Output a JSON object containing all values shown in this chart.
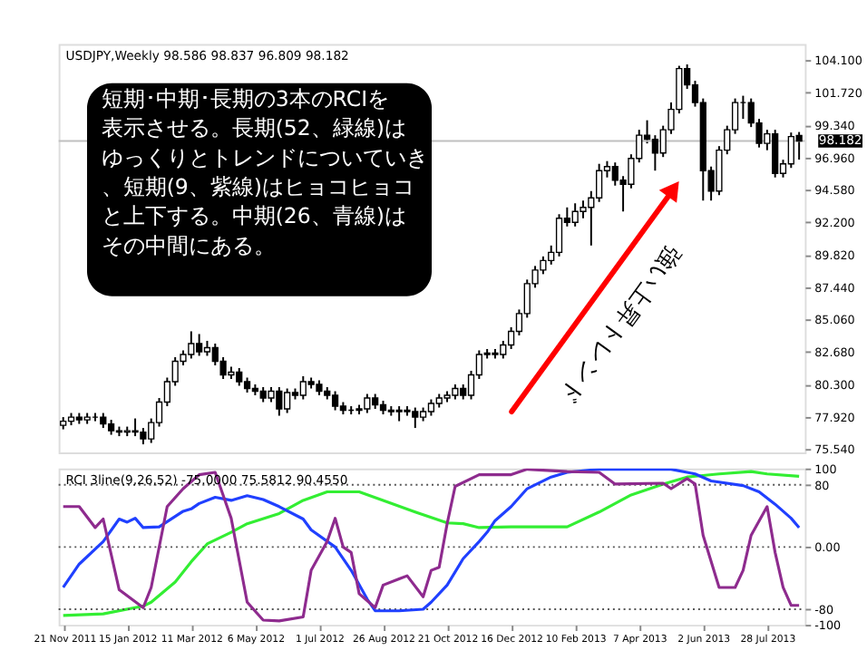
{
  "chart_data": [
    {
      "type": "candlestick",
      "x": [
        "2011-11-20",
        "2011-11-27",
        "2011-12-04",
        "2011-12-11",
        "2011-12-18",
        "2011-12-25",
        "2012-01-01",
        "2012-01-08",
        "2012-01-15",
        "2012-01-22",
        "2012-01-29",
        "2012-02-05",
        "2012-02-12",
        "2012-02-19",
        "2012-02-26",
        "2012-03-04",
        "2012-03-11",
        "2012-03-18",
        "2012-03-25",
        "2012-04-01",
        "2012-04-08",
        "2012-04-15",
        "2012-04-22",
        "2012-04-29",
        "2012-05-06",
        "2012-05-13",
        "2012-05-20",
        "2012-05-27",
        "2012-06-03",
        "2012-06-10",
        "2012-06-17",
        "2012-06-24",
        "2012-07-01",
        "2012-07-08",
        "2012-07-15",
        "2012-07-22",
        "2012-07-29",
        "2012-08-05",
        "2012-08-12",
        "2012-08-19",
        "2012-08-26",
        "2012-09-02",
        "2012-09-09",
        "2012-09-16",
        "2012-09-23",
        "2012-09-30",
        "2012-10-07",
        "2012-10-14",
        "2012-10-21",
        "2012-10-28",
        "2012-11-04",
        "2012-11-11",
        "2012-11-18",
        "2012-11-25",
        "2012-12-02",
        "2012-12-09",
        "2012-12-16",
        "2012-12-23",
        "2012-12-30",
        "2013-01-06",
        "2013-01-13",
        "2013-01-20",
        "2013-01-27",
        "2013-02-03",
        "2013-02-10",
        "2013-02-17",
        "2013-02-24",
        "2013-03-03",
        "2013-03-10",
        "2013-03-17",
        "2013-03-24",
        "2013-03-31",
        "2013-04-07",
        "2013-04-14",
        "2013-04-21",
        "2013-04-28",
        "2013-05-05",
        "2013-05-12",
        "2013-05-19",
        "2013-05-26",
        "2013-06-02",
        "2013-06-09",
        "2013-06-16",
        "2013-06-23",
        "2013-06-30",
        "2013-07-07",
        "2013-07-14",
        "2013-07-21",
        "2013-07-28",
        "2013-08-04",
        "2013-08-11",
        "2013-08-18",
        "2013-08-25"
      ],
      "ohlc": [
        [
          77.3,
          77.9,
          77.0,
          77.6
        ],
        [
          77.6,
          78.2,
          77.3,
          77.9
        ],
        [
          77.9,
          78.2,
          77.4,
          77.7
        ],
        [
          77.7,
          78.2,
          77.4,
          77.9
        ],
        [
          77.9,
          78.2,
          77.6,
          77.9
        ],
        [
          77.9,
          78.2,
          77.1,
          77.4
        ],
        [
          77.4,
          77.7,
          76.6,
          76.9
        ],
        [
          76.9,
          77.2,
          76.5,
          76.8
        ],
        [
          76.8,
          77.2,
          76.5,
          76.9
        ],
        [
          76.9,
          77.8,
          76.5,
          76.8
        ],
        [
          76.8,
          77.1,
          75.9,
          76.3
        ],
        [
          76.3,
          77.8,
          76.0,
          77.5
        ],
        [
          77.5,
          79.3,
          77.2,
          79.0
        ],
        [
          79.0,
          80.8,
          78.7,
          80.5
        ],
        [
          80.5,
          82.3,
          80.2,
          82.0
        ],
        [
          82.0,
          82.8,
          81.7,
          82.5
        ],
        [
          82.5,
          84.2,
          82.2,
          83.3
        ],
        [
          83.3,
          84.0,
          82.4,
          82.7
        ],
        [
          82.7,
          83.5,
          82.4,
          83.0
        ],
        [
          83.0,
          83.3,
          81.7,
          82.0
        ],
        [
          82.0,
          82.3,
          80.7,
          81.0
        ],
        [
          81.0,
          81.6,
          80.7,
          81.2
        ],
        [
          81.2,
          81.5,
          80.2,
          80.5
        ],
        [
          80.5,
          80.8,
          79.7,
          80.0
        ],
        [
          80.0,
          80.3,
          79.5,
          79.8
        ],
        [
          79.8,
          80.1,
          79.0,
          79.3
        ],
        [
          79.3,
          80.1,
          79.0,
          79.8
        ],
        [
          79.8,
          80.1,
          78.0,
          78.5
        ],
        [
          78.5,
          80.0,
          78.2,
          79.7
        ],
        [
          79.7,
          80.0,
          79.2,
          79.5
        ],
        [
          79.5,
          80.9,
          79.2,
          80.5
        ],
        [
          80.5,
          80.8,
          80.0,
          80.3
        ],
        [
          80.3,
          80.6,
          79.5,
          79.8
        ],
        [
          79.8,
          80.1,
          79.2,
          79.5
        ],
        [
          79.5,
          79.8,
          78.4,
          78.7
        ],
        [
          78.7,
          79.0,
          78.1,
          78.4
        ],
        [
          78.4,
          78.7,
          78.1,
          78.4
        ],
        [
          78.4,
          78.8,
          78.1,
          78.5
        ],
        [
          78.5,
          79.6,
          78.2,
          79.3
        ],
        [
          79.3,
          79.6,
          78.5,
          78.8
        ],
        [
          78.8,
          79.1,
          78.1,
          78.4
        ],
        [
          78.4,
          78.7,
          78.0,
          78.3
        ],
        [
          78.3,
          78.7,
          77.6,
          78.4
        ],
        [
          78.4,
          78.7,
          78.0,
          78.3
        ],
        [
          78.3,
          78.6,
          77.1,
          77.9
        ],
        [
          77.9,
          78.6,
          77.6,
          78.3
        ],
        [
          78.3,
          79.2,
          78.0,
          78.9
        ],
        [
          78.9,
          79.6,
          78.6,
          79.3
        ],
        [
          79.3,
          79.8,
          79.0,
          79.5
        ],
        [
          79.5,
          80.3,
          79.2,
          80.0
        ],
        [
          80.0,
          80.3,
          79.2,
          79.5
        ],
        [
          79.5,
          81.3,
          79.2,
          81.0
        ],
        [
          81.0,
          82.8,
          80.7,
          82.5
        ],
        [
          82.5,
          82.9,
          82.2,
          82.6
        ],
        [
          82.6,
          82.9,
          82.2,
          82.5
        ],
        [
          82.5,
          83.5,
          82.2,
          83.2
        ],
        [
          83.2,
          84.5,
          82.9,
          84.2
        ],
        [
          84.2,
          85.8,
          83.9,
          85.5
        ],
        [
          85.5,
          88.0,
          85.2,
          87.7
        ],
        [
          87.7,
          89.0,
          87.4,
          88.7
        ],
        [
          88.7,
          89.7,
          88.4,
          89.4
        ],
        [
          89.4,
          90.5,
          89.1,
          90.0
        ],
        [
          90.0,
          92.8,
          89.7,
          92.5
        ],
        [
          92.5,
          93.3,
          91.9,
          92.2
        ],
        [
          92.2,
          93.6,
          91.9,
          93.0
        ],
        [
          93.0,
          93.8,
          92.5,
          93.3
        ],
        [
          93.3,
          94.5,
          90.5,
          94.0
        ],
        [
          94.0,
          96.5,
          93.7,
          96.0
        ],
        [
          96.0,
          96.7,
          95.5,
          96.3
        ],
        [
          96.3,
          96.6,
          94.9,
          95.3
        ],
        [
          95.3,
          95.6,
          93.0,
          95.0
        ],
        [
          95.0,
          97.2,
          94.7,
          96.9
        ],
        [
          96.9,
          99.0,
          96.6,
          98.6
        ],
        [
          98.6,
          99.7,
          98.0,
          98.3
        ],
        [
          98.3,
          98.6,
          96.0,
          97.3
        ],
        [
          97.3,
          99.3,
          97.0,
          99.0
        ],
        [
          99.0,
          101.0,
          98.7,
          100.5
        ],
        [
          100.5,
          103.7,
          100.2,
          103.5
        ],
        [
          103.5,
          103.8,
          102.0,
          102.3
        ],
        [
          102.3,
          102.6,
          100.7,
          101.0
        ],
        [
          101.0,
          101.3,
          93.8,
          96.0
        ],
        [
          96.0,
          96.3,
          93.8,
          94.5
        ],
        [
          94.5,
          97.8,
          94.2,
          97.5
        ],
        [
          97.5,
          99.3,
          97.2,
          99.0
        ],
        [
          99.0,
          101.3,
          98.7,
          101.0
        ],
        [
          101.0,
          101.5,
          99.8,
          101.0
        ],
        [
          101.0,
          101.3,
          99.2,
          99.5
        ],
        [
          99.5,
          99.8,
          97.7,
          98.0
        ],
        [
          98.0,
          99.0,
          97.5,
          98.7
        ],
        [
          98.7,
          99.0,
          95.5,
          95.8
        ],
        [
          95.8,
          96.8,
          95.5,
          96.5
        ],
        [
          96.5,
          98.8,
          96.2,
          98.5
        ],
        [
          98.586,
          98.837,
          96.809,
          98.182
        ]
      ],
      "xlim": [
        "2011-11-16",
        "2013-08-30"
      ],
      "ylim": [
        75.3,
        105.3
      ],
      "yticks": [
        {
          "value": 75.54,
          "label": "75.540"
        },
        {
          "value": 77.92,
          "label": "77.920"
        },
        {
          "value": 80.3,
          "label": "80.300"
        },
        {
          "value": 82.68,
          "label": "82.680"
        },
        {
          "value": 85.06,
          "label": "85.060"
        },
        {
          "value": 87.44,
          "label": "87.440"
        },
        {
          "value": 89.82,
          "label": "89.820"
        },
        {
          "value": 92.2,
          "label": "92.200"
        },
        {
          "value": 94.58,
          "label": "94.580"
        },
        {
          "value": 96.96,
          "label": "96.960"
        },
        {
          "value": 99.34,
          "label": "99.340"
        },
        {
          "value": 101.72,
          "label": "101.720"
        },
        {
          "value": 104.1,
          "label": "104.100"
        }
      ],
      "tick_labels": "y",
      "ref_lines": [
        {
          "axis": "y",
          "value": 98.182,
          "label": "98.182",
          "color": "#c0c0c0",
          "line_style": "solid"
        }
      ],
      "annotations": [
        "USDJPY,Weekly  98.586 98.837 96.809 98.182",
        "短期･中期･長期の3本のRCIを表示させる。長期(52、緑線)はゆっくりとトレンドについていき、短期(9、紫線)はヒョコヒョコと上下する。中期(26、青線)はその中間にある。",
        "強い上昇トレンド"
      ]
    },
    {
      "type": "line",
      "xlim": [
        "2011-11-16",
        "2013-08-30"
      ],
      "xticks": [
        {
          "value": "2011-11-21",
          "label": "21 Nov 2011"
        },
        {
          "value": "2012-01-15",
          "label": "15 Jan 2012"
        },
        {
          "value": "2012-03-11",
          "label": "11 Mar 2012"
        },
        {
          "value": "2012-05-06",
          "label": "6 May 2012"
        },
        {
          "value": "2012-07-01",
          "label": "1 Jul 2012"
        },
        {
          "value": "2012-08-26",
          "label": "26 Aug 2012"
        },
        {
          "value": "2012-10-21",
          "label": "21 Oct 2012"
        },
        {
          "value": "2012-12-16",
          "label": "16 Dec 2012"
        },
        {
          "value": "2013-02-10",
          "label": "10 Feb 2013"
        },
        {
          "value": "2013-04-07",
          "label": "7 Apr 2013"
        },
        {
          "value": "2013-06-02",
          "label": "2 Jun 2013"
        },
        {
          "value": "2013-07-28",
          "label": "28 Jul 2013"
        }
      ],
      "ylim": [
        -100,
        101
      ],
      "yticks": [
        100,
        80,
        {
          "value": 0,
          "label": "0.00"
        },
        -80,
        -100
      ],
      "ref_lines": [
        {
          "axis": "y",
          "value": 80,
          "color": "#555555",
          "line_style": "dotted"
        },
        {
          "axis": "y",
          "value": 0,
          "color": "#555555",
          "line_style": "dotted"
        },
        {
          "axis": "y",
          "value": -80,
          "color": "#555555",
          "line_style": "dotted"
        }
      ],
      "annotations": [
        "RCI 3line(9,26,52) -75.0000 75.5812 90.4550"
      ],
      "series": [
        {
          "color": "#33ee33",
          "x": [
            "2011-11-20",
            "2011-12-25",
            "2012-01-29",
            "2012-02-05",
            "2012-02-26",
            "2012-03-11",
            "2012-03-25",
            "2012-04-15",
            "2012-04-29",
            "2012-05-27",
            "2012-06-17",
            "2012-07-08",
            "2012-08-05",
            "2012-08-26",
            "2012-09-23",
            "2012-10-21",
            "2012-11-04",
            "2012-11-18",
            "2012-12-16",
            "2013-02-03",
            "2013-03-03",
            "2013-03-31",
            "2013-04-28",
            "2013-05-19",
            "2013-06-16",
            "2013-07-14",
            "2013-07-28",
            "2013-08-25"
          ],
          "values": [
            -88,
            -86,
            -76,
            -71,
            -45,
            -19,
            4,
            19,
            30,
            43,
            60,
            71,
            71,
            60,
            45,
            31,
            30,
            25,
            26,
            26,
            45,
            67,
            81,
            90,
            94,
            97,
            94,
            91
          ]
        },
        {
          "color": "#2040ff",
          "x": [
            "2011-11-20",
            "2011-12-04",
            "2011-12-25",
            "2012-01-08",
            "2012-01-15",
            "2012-01-22",
            "2012-01-29",
            "2012-02-12",
            "2012-03-04",
            "2012-03-11",
            "2012-03-18",
            "2012-04-01",
            "2012-04-15",
            "2012-04-29",
            "2012-05-13",
            "2012-05-27",
            "2012-06-17",
            "2012-06-24",
            "2012-07-15",
            "2012-07-29",
            "2012-08-12",
            "2012-08-19",
            "2012-09-09",
            "2012-09-30",
            "2012-10-07",
            "2012-10-21",
            "2012-11-04",
            "2012-11-18",
            "2012-11-25",
            "2012-12-02",
            "2012-12-16",
            "2012-12-30",
            "2013-01-20",
            "2013-02-03",
            "2013-03-03",
            "2013-03-31",
            "2013-05-05",
            "2013-05-26",
            "2013-06-09",
            "2013-07-07",
            "2013-07-21",
            "2013-08-04",
            "2013-08-18",
            "2013-08-25"
          ],
          "values": [
            -52,
            -22,
            7,
            36,
            32,
            37,
            25,
            26,
            46,
            49,
            56,
            64,
            60,
            66,
            61,
            52,
            36,
            22,
            0,
            -30,
            -67,
            -82,
            -82,
            -80,
            -71,
            -49,
            -15,
            7,
            19,
            34,
            52,
            75,
            90,
            96,
            100,
            100,
            100,
            94,
            85,
            79,
            71,
            55,
            37,
            25
          ]
        },
        {
          "color": "#8e2b8e",
          "x": [
            "2011-11-20",
            "2011-12-04",
            "2011-12-18",
            "2011-12-25",
            "2012-01-08",
            "2012-01-29",
            "2012-02-05",
            "2012-02-19",
            "2012-03-04",
            "2012-03-18",
            "2012-04-01",
            "2012-04-15",
            "2012-04-29",
            "2012-05-13",
            "2012-05-27",
            "2012-06-17",
            "2012-06-24",
            "2012-07-08",
            "2012-07-15",
            "2012-07-22",
            "2012-07-29",
            "2012-08-05",
            "2012-08-19",
            "2012-08-26",
            "2012-09-09",
            "2012-09-16",
            "2012-09-30",
            "2012-10-07",
            "2012-10-14",
            "2012-10-21",
            "2012-10-28",
            "2012-11-18",
            "2012-12-16",
            "2012-12-30",
            "2013-02-03",
            "2013-03-03",
            "2013-03-17",
            "2013-04-28",
            "2013-05-05",
            "2013-05-19",
            "2013-05-26",
            "2013-06-02",
            "2013-06-16",
            "2013-06-30",
            "2013-07-07",
            "2013-07-14",
            "2013-07-28",
            "2013-08-04",
            "2013-08-11",
            "2013-08-18",
            "2013-08-25"
          ],
          "values": [
            52,
            52,
            25,
            36,
            -55,
            -78,
            -52,
            52,
            75,
            93,
            96,
            37,
            -71,
            -94,
            -95,
            -90,
            -30,
            7,
            37,
            0,
            -7,
            -60,
            -78,
            -49,
            -41,
            -37,
            -64,
            -30,
            -26,
            30,
            78,
            93,
            93,
            100,
            97,
            96,
            81,
            82,
            75,
            88,
            81,
            15,
            -52,
            -52,
            -30,
            15,
            52,
            -7,
            -52,
            -75,
            -75
          ]
        }
      ]
    }
  ]
}
